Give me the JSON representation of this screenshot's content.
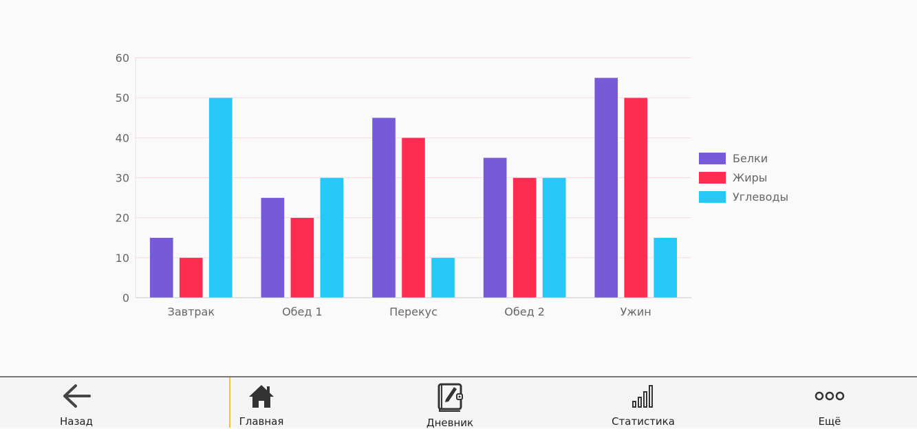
{
  "chart_data": {
    "type": "bar",
    "categories": [
      "Завтрак",
      "Обед 1",
      "Перекус",
      "Обед 2",
      "Ужин"
    ],
    "series": [
      {
        "name": "Белки",
        "color": "#775ad8",
        "values": [
          15,
          25,
          45,
          35,
          55
        ]
      },
      {
        "name": "Жиры",
        "color": "#ff2c52",
        "values": [
          10,
          20,
          40,
          30,
          50
        ]
      },
      {
        "name": "Углеводы",
        "color": "#26c8f7",
        "values": [
          50,
          30,
          10,
          30,
          15
        ]
      }
    ],
    "ylim": [
      0,
      60
    ],
    "yticks": [
      0,
      10,
      20,
      30,
      40,
      50,
      60
    ],
    "grid": true,
    "legend": "right"
  },
  "nav": {
    "back": {
      "label": "Назад",
      "icon": "arrow-left-icon"
    },
    "home": {
      "label": "Главная",
      "icon": "home-icon"
    },
    "diary": {
      "label": "Дневник",
      "icon": "diary-book-icon"
    },
    "stats": {
      "label": "Статистика",
      "icon": "bar-chart-icon"
    },
    "more": {
      "label": "Ещё",
      "icon": "more-dots-icon"
    }
  }
}
